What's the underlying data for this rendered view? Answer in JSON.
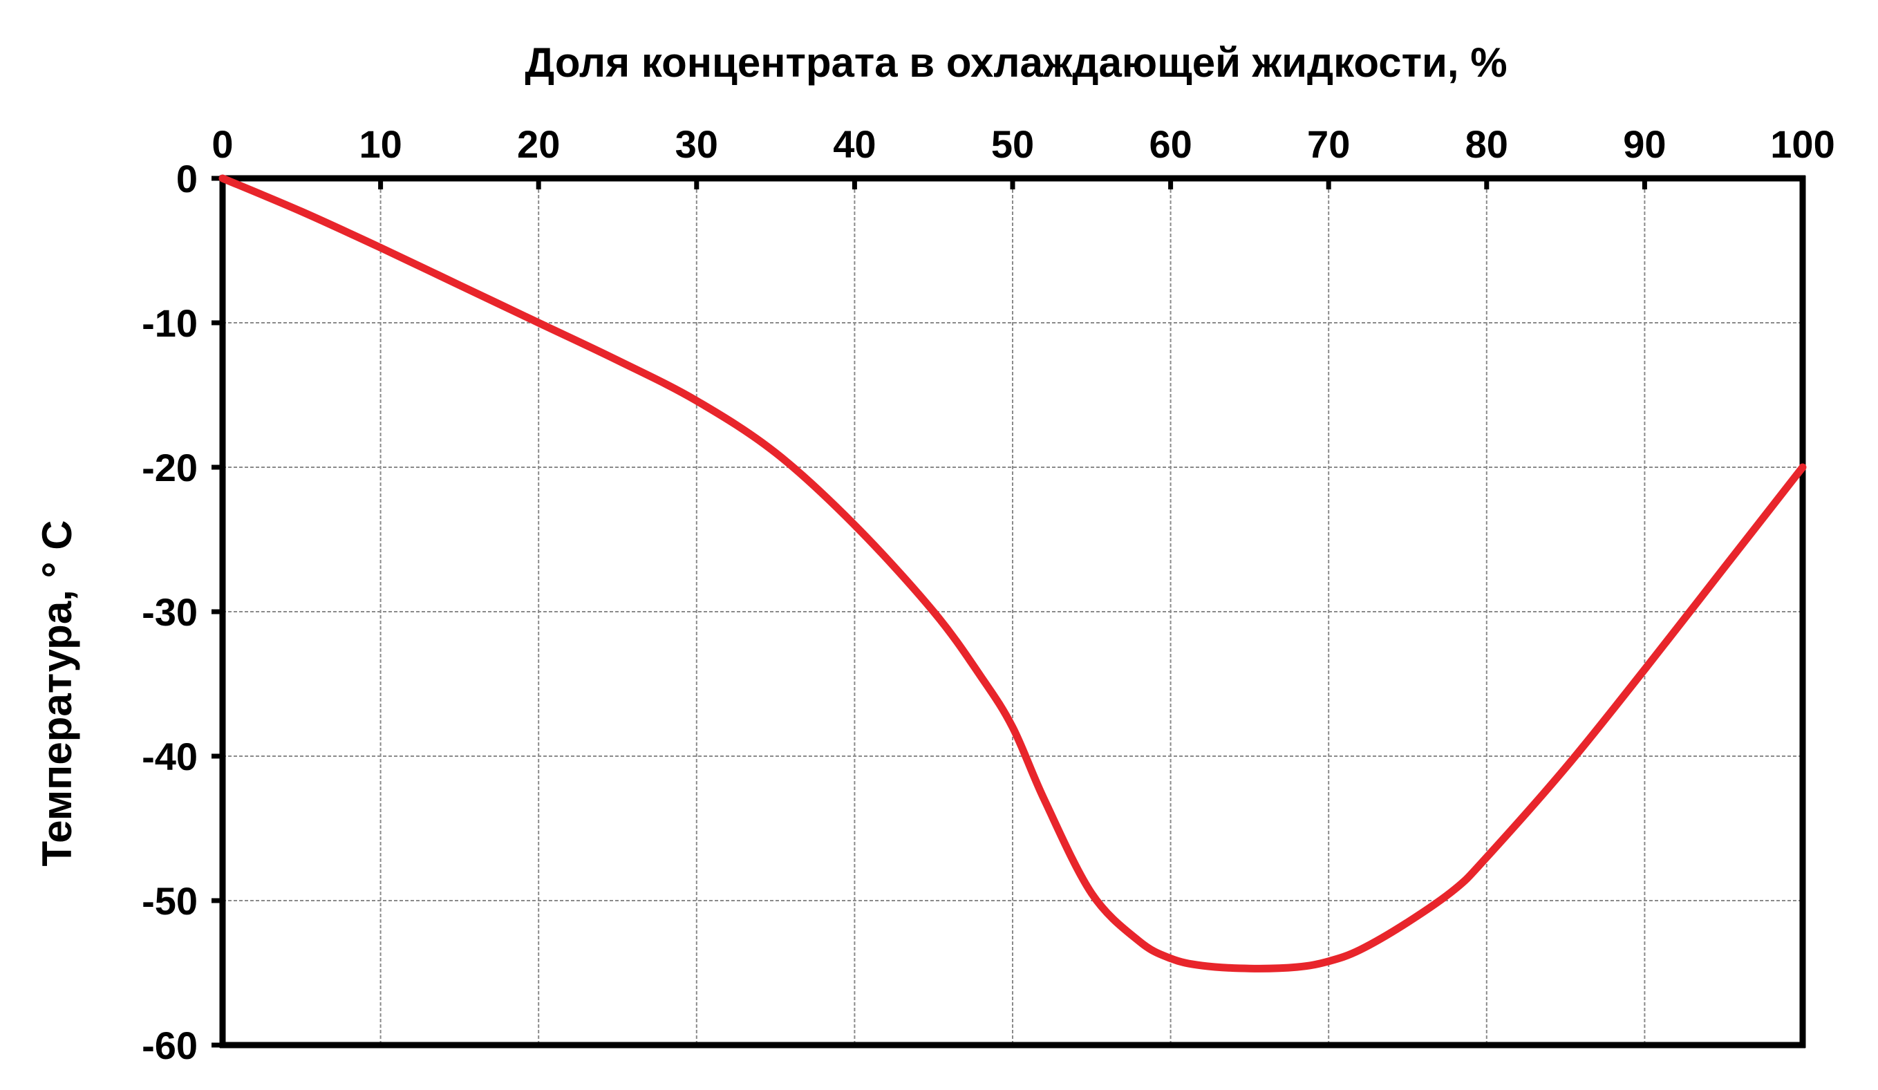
{
  "chart_data": {
    "type": "line",
    "xlabel": "Доля концентрата в охлаждающей жидкости, %",
    "ylabel": "Температура, ° С",
    "xlim": [
      0,
      100
    ],
    "ylim": [
      -60,
      0
    ],
    "x_ticks": [
      "0",
      "10",
      "20",
      "30",
      "40",
      "50",
      "60",
      "70",
      "80",
      "90",
      "100"
    ],
    "y_ticks": [
      "0",
      "-10",
      "-20",
      "-30",
      "-40",
      "-50",
      "-60"
    ],
    "x_axis_position": "top",
    "grid": true,
    "series": [
      {
        "color": "#e8252b",
        "x": [
          0,
          5,
          10,
          15,
          20,
          25,
          30,
          35,
          40,
          45,
          48,
          50,
          52,
          55,
          58,
          60,
          62,
          65,
          68,
          70,
          72,
          75,
          78,
          80,
          85,
          90,
          95,
          100
        ],
        "y": [
          0,
          -2.3,
          -4.8,
          -7.4,
          -10.0,
          -12.6,
          -15.4,
          -19.0,
          -24.0,
          -30.0,
          -34.5,
          -38.0,
          -43.0,
          -49.5,
          -52.8,
          -54.0,
          -54.5,
          -54.7,
          -54.6,
          -54.2,
          -53.4,
          -51.5,
          -49.2,
          -47.0,
          -40.8,
          -34.0,
          -27.0,
          -20.0
        ]
      }
    ]
  }
}
